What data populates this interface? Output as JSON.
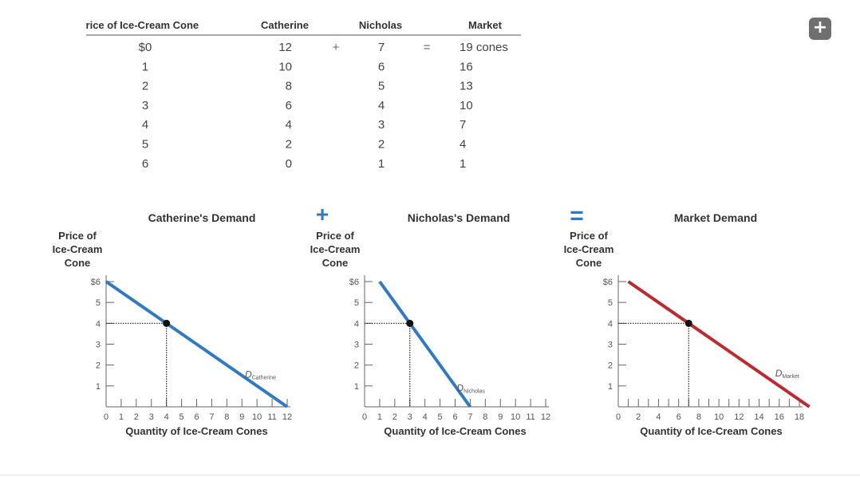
{
  "table": {
    "headers": [
      "Price of Ice-Cream Cone",
      "Catherine",
      "Nicholas",
      "Market"
    ],
    "plus_sign": "+",
    "equals_sign": "=",
    "rows": [
      {
        "price": "$0",
        "catherine": "12",
        "nicholas": "7",
        "market": "19 cones"
      },
      {
        "price": "1",
        "catherine": "10",
        "nicholas": "6",
        "market": "16"
      },
      {
        "price": "2",
        "catherine": "8",
        "nicholas": "5",
        "market": "13"
      },
      {
        "price": "3",
        "catherine": "6",
        "nicholas": "4",
        "market": "10"
      },
      {
        "price": "4",
        "catherine": "4",
        "nicholas": "3",
        "market": "7"
      },
      {
        "price": "5",
        "catherine": "2",
        "nicholas": "2",
        "market": "4"
      },
      {
        "price": "6",
        "catherine": "0",
        "nicholas": "1",
        "market": "1"
      }
    ]
  },
  "operators": {
    "plus": "+",
    "equals": "="
  },
  "expand_icon": "plus-icon",
  "chart_data": [
    {
      "type": "line",
      "title": "Catherine's Demand",
      "ylabel": [
        "Price of",
        "Ice-Cream",
        "Cone"
      ],
      "xlabel": "Quantity of Ice-Cream Cones",
      "xlim": [
        0,
        12
      ],
      "ylim": [
        0,
        6
      ],
      "xticks": [
        0,
        1,
        2,
        3,
        4,
        5,
        6,
        7,
        8,
        9,
        10,
        11,
        12
      ],
      "xtick_labels": [
        "0",
        "1",
        "2",
        "3",
        "4",
        "5",
        "6",
        "7",
        "8",
        "9",
        "10",
        "11",
        "12"
      ],
      "yticks": [
        1,
        2,
        3,
        4,
        5,
        6
      ],
      "ytick_labels": [
        "1",
        "2",
        "3",
        "4",
        "5",
        "$6"
      ],
      "series": [
        {
          "name_main": "D",
          "name_sub": "Catherine",
          "color": "#2f7ac6",
          "points": [
            [
              0,
              6
            ],
            [
              12,
              0
            ]
          ],
          "label_at": [
            9.2,
            1.4
          ]
        }
      ],
      "highlight": {
        "x": 4,
        "y": 4
      }
    },
    {
      "type": "line",
      "title": "Nicholas's Demand",
      "ylabel": [
        "Price of",
        "Ice-Cream",
        "Cone"
      ],
      "xlabel": "Quantity of Ice-Cream Cones",
      "xlim": [
        0,
        12
      ],
      "ylim": [
        0,
        6
      ],
      "xticks": [
        0,
        1,
        2,
        3,
        4,
        5,
        6,
        7,
        8,
        9,
        10,
        11,
        12
      ],
      "xtick_labels": [
        "0",
        "1",
        "2",
        "3",
        "4",
        "5",
        "6",
        "7",
        "8",
        "9",
        "10",
        "11",
        "12"
      ],
      "yticks": [
        1,
        2,
        3,
        4,
        5,
        6
      ],
      "ytick_labels": [
        "1",
        "2",
        "3",
        "4",
        "5",
        "$6"
      ],
      "series": [
        {
          "name_main": "D",
          "name_sub": "Nicholas",
          "color": "#2f7ac6",
          "points": [
            [
              1,
              6
            ],
            [
              7,
              0
            ]
          ],
          "label_at": [
            6.1,
            0.75
          ]
        }
      ],
      "highlight": {
        "x": 3,
        "y": 4
      }
    },
    {
      "type": "line",
      "title": "Market Demand",
      "ylabel": [
        "Price of",
        "Ice-Cream",
        "Cone"
      ],
      "xlabel": "Quantity of Ice-Cream Cones",
      "xlim": [
        0,
        18
      ],
      "ylim": [
        0,
        6
      ],
      "xticks": [
        0,
        1,
        2,
        3,
        4,
        5,
        6,
        7,
        8,
        9,
        10,
        11,
        12,
        13,
        14,
        15,
        16,
        17,
        18
      ],
      "xtick_labels": [
        "0",
        "2",
        "4",
        "6",
        "8",
        "10",
        "12",
        "14",
        "16",
        "18"
      ],
      "xtick_label_values": [
        0,
        2,
        4,
        6,
        8,
        10,
        12,
        14,
        16,
        18
      ],
      "yticks": [
        1,
        2,
        3,
        4,
        5,
        6
      ],
      "ytick_labels": [
        "1",
        "2",
        "3",
        "4",
        "5",
        "$6"
      ],
      "series": [
        {
          "name_main": "D",
          "name_sub": "Market",
          "color": "#c0282d",
          "points": [
            [
              1,
              6
            ],
            [
              19,
              0
            ]
          ],
          "label_at": [
            15.6,
            1.45
          ]
        }
      ],
      "highlight": {
        "x": 7,
        "y": 4
      }
    }
  ]
}
